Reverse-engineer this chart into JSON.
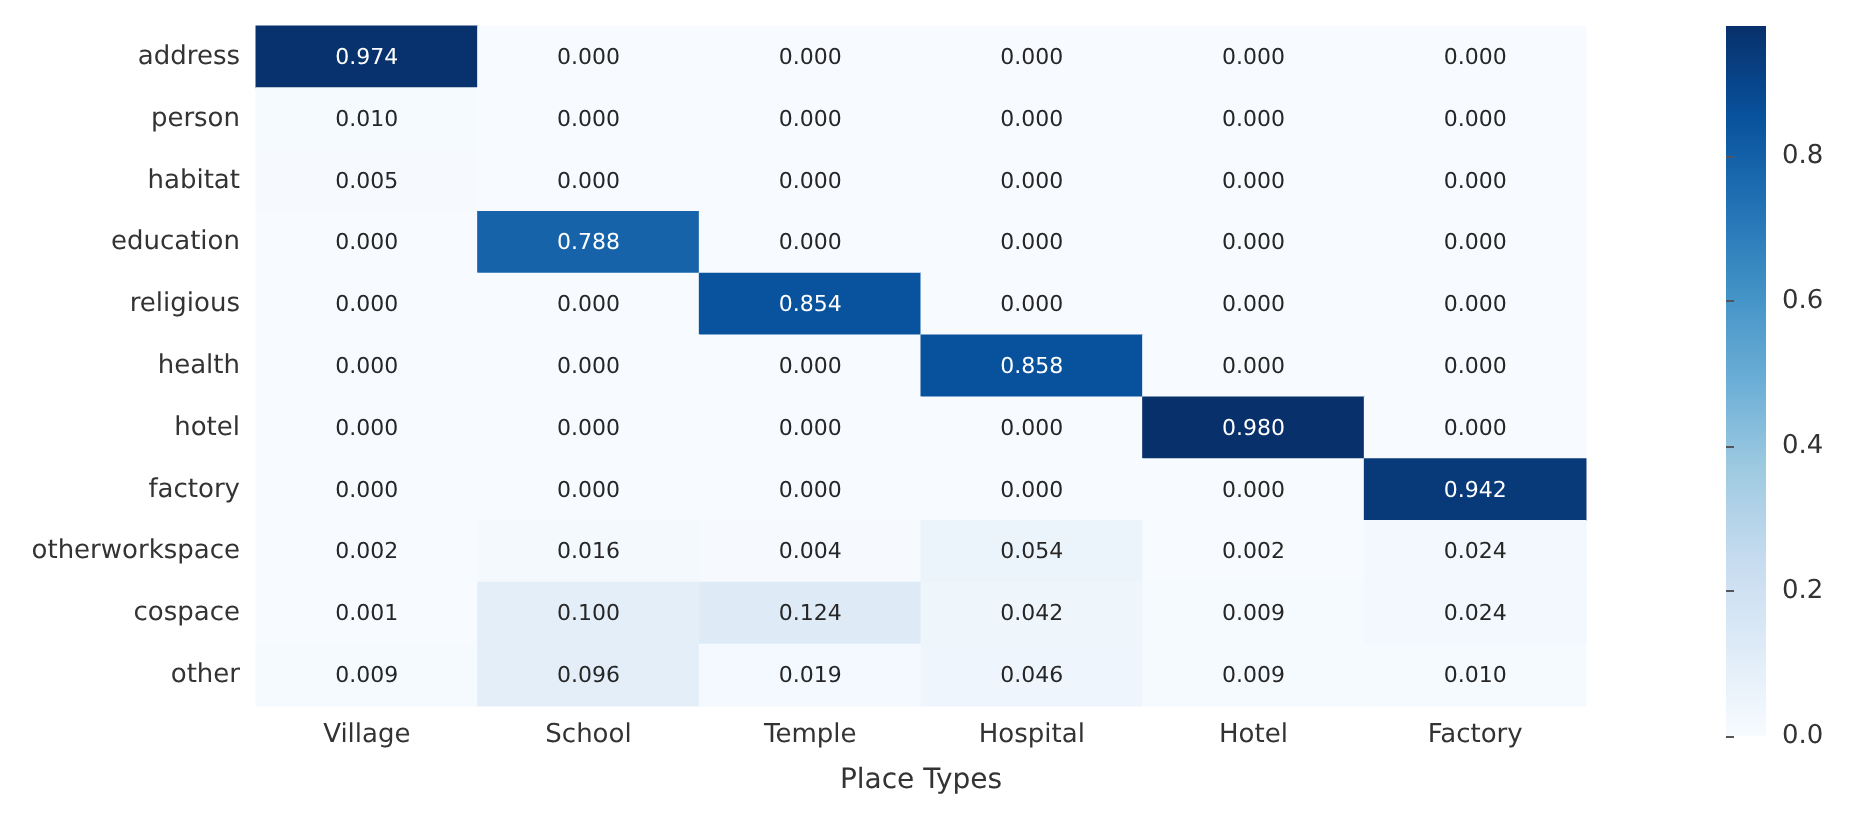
{
  "chart_data": {
    "type": "heatmap",
    "xlabel": "Place Types",
    "categories": [
      "Village",
      "School",
      "Temple",
      "Hospital",
      "Hotel",
      "Factory"
    ],
    "y_categories": [
      "address",
      "person",
      "habitat",
      "education",
      "religious",
      "health",
      "hotel",
      "factory",
      "otherworkspace",
      "cospace",
      "other"
    ],
    "cells": [
      [
        0.974,
        0,
        0,
        0,
        0,
        0
      ],
      [
        0.01,
        0,
        0,
        0,
        0,
        0
      ],
      [
        0.005,
        0,
        0,
        0,
        0,
        0
      ],
      [
        0,
        0.788,
        0,
        0,
        0,
        0
      ],
      [
        0,
        0,
        0.854,
        0,
        0,
        0
      ],
      [
        0,
        0,
        0,
        0.858,
        0,
        0
      ],
      [
        0,
        0,
        0,
        0,
        0.98,
        0
      ],
      [
        0,
        0,
        0,
        0,
        0,
        0.942
      ],
      [
        0.002,
        0.016,
        0.004,
        0.054,
        0.002,
        0.024
      ],
      [
        0.001,
        0.1,
        0.124,
        0.042,
        0.009,
        0.024
      ],
      [
        0.009,
        0.096,
        0.019,
        0.046,
        0.009,
        0.01
      ]
    ],
    "cell_labels": [
      [
        "0.974",
        "0.000",
        "0.000",
        "0.000",
        "0.000",
        "0.000"
      ],
      [
        "0.010",
        "0.000",
        "0.000",
        "0.000",
        "0.000",
        "0.000"
      ],
      [
        "0.005",
        "0.000",
        "0.000",
        "0.000",
        "0.000",
        "0.000"
      ],
      [
        "0.000",
        "0.788",
        "0.000",
        "0.000",
        "0.000",
        "0.000"
      ],
      [
        "0.000",
        "0.000",
        "0.854",
        "0.000",
        "0.000",
        "0.000"
      ],
      [
        "0.000",
        "0.000",
        "0.000",
        "0.858",
        "0.000",
        "0.000"
      ],
      [
        "0.000",
        "0.000",
        "0.000",
        "0.000",
        "0.980",
        "0.000"
      ],
      [
        "0.000",
        "0.000",
        "0.000",
        "0.000",
        "0.000",
        "0.942"
      ],
      [
        "0.002",
        "0.016",
        "0.004",
        "0.054",
        "0.002",
        "0.024"
      ],
      [
        "0.001",
        "0.100",
        "0.124",
        "0.042",
        "0.009",
        "0.024"
      ],
      [
        "0.009",
        "0.096",
        "0.019",
        "0.046",
        "0.009",
        "0.010"
      ]
    ],
    "clim": [
      0,
      0.98
    ],
    "cticks": [
      {
        "value": 0,
        "label": "0.0"
      },
      {
        "value": 0.2,
        "label": "0.2"
      },
      {
        "value": 0.4,
        "label": "0.4"
      },
      {
        "value": 0.6,
        "label": "0.6"
      },
      {
        "value": 0.8,
        "label": "0.8"
      }
    ]
  }
}
